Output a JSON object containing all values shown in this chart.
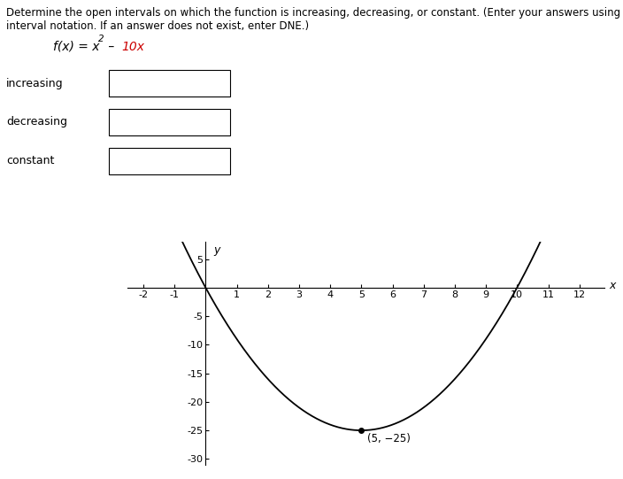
{
  "title_line1": "Determine the open intervals on which the function is increasing, decreasing, or constant. (Enter your answers using",
  "title_line2": "interval notation. If an answer does not exist, enter DNE.)",
  "func_parts": [
    {
      "text": "f(x) = x",
      "color": "#000000",
      "style": "italic",
      "size": 10
    },
    {
      "text": "2",
      "color": "#000000",
      "style": "italic",
      "size": 8,
      "super": true
    },
    {
      "text": " – ",
      "color": "#000000",
      "style": "normal",
      "size": 10
    },
    {
      "text": "10x",
      "color": "#cc0000",
      "style": "italic",
      "size": 10
    }
  ],
  "labels": [
    "increasing",
    "decreasing",
    "constant"
  ],
  "x_min": -2.5,
  "x_max": 12.8,
  "y_min": -31,
  "y_max": 8,
  "x_ticks": [
    -2,
    -1,
    1,
    2,
    3,
    4,
    5,
    6,
    7,
    8,
    9,
    10,
    11,
    12
  ],
  "y_ticks": [
    5,
    -5,
    -10,
    -15,
    -20,
    -25,
    -30
  ],
  "vertex_x": 5,
  "vertex_y": -25,
  "vertex_label": "(5, −25)",
  "curve_color": "#000000",
  "background_color": "#ffffff",
  "font_size_title": 8.5,
  "font_size_func": 10,
  "font_size_labels": 9,
  "font_size_ticks": 8,
  "font_size_vertex": 8.5
}
